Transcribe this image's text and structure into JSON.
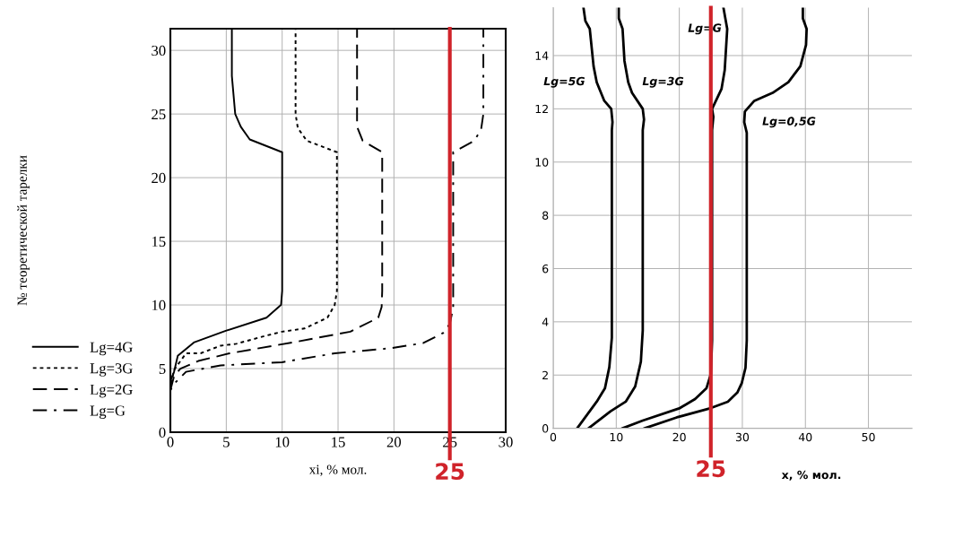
{
  "chart_data": [
    {
      "type": "line",
      "xlabel": "xi, % мол.",
      "ylabel": "№ теоретической тарелки",
      "xlim": [
        0,
        30
      ],
      "ylim": [
        0,
        31.7
      ],
      "xticks": [
        0,
        5,
        10,
        15,
        20,
        25,
        30
      ],
      "yticks": [
        0,
        5,
        10,
        15,
        20,
        25,
        30
      ],
      "grid": true,
      "legend": "left",
      "marker": "none",
      "ref_lines": [
        {
          "axis": "x",
          "value": 25,
          "label": "25",
          "color": "#d0232a"
        }
      ],
      "series": [
        {
          "name": "Lg=4G",
          "color": "#000000",
          "line_style": "solid",
          "x": [
            0,
            0,
            0.33,
            0.66,
            2.1,
            4.9,
            8.6,
            9.9,
            10.0,
            10,
            7.1,
            6.3,
            5.8,
            5.5,
            5.5
          ],
          "values": [
            0,
            4.0,
            4.75,
            6.0,
            7.05,
            7.95,
            9.0,
            10.0,
            11.1,
            22,
            23.0,
            24.0,
            25.0,
            28.0,
            31.7
          ]
        },
        {
          "name": "Lg=3G",
          "color": "#000000",
          "line_style": "dotted",
          "x": [
            0,
            0,
            0.33,
            1.4,
            2.7,
            4.5,
            5.9,
            8.4,
            10,
            12,
            14.05,
            14.7,
            14.9,
            14.9,
            12.2,
            11.4,
            11.2,
            11.2
          ],
          "values": [
            0,
            3.5,
            4.9,
            6.2,
            6.2,
            6.8,
            6.95,
            7.55,
            7.9,
            8.15,
            9.0,
            10.0,
            11.1,
            22,
            22.9,
            23.9,
            25.0,
            31.7
          ]
        },
        {
          "name": "Lg=2G",
          "color": "#000000",
          "line_style": "dashed",
          "x": [
            0,
            0,
            0.33,
            0.9,
            2.5,
            5.3,
            10.9,
            16.1,
            18.6,
            18.9,
            18.95,
            18.95,
            17.2,
            16.7,
            16.7,
            16.7
          ],
          "values": [
            0,
            3.3,
            4.4,
            5.0,
            5.6,
            6.2,
            7.05,
            7.9,
            9.0,
            9.85,
            11.1,
            22,
            22.9,
            24.0,
            25.0,
            31.7
          ]
        },
        {
          "name": "Lg=G",
          "color": "#000000",
          "line_style": "dashdot",
          "x": [
            0,
            0,
            0.33,
            1.4,
            4.5,
            10.0,
            14.7,
            19.7,
            22.6,
            24.4,
            25.0,
            25.3,
            25.3,
            27.2,
            27.8,
            28.0,
            28.0
          ],
          "values": [
            0,
            3.3,
            3.8,
            4.75,
            5.25,
            5.5,
            6.2,
            6.6,
            7.0,
            7.8,
            8.5,
            9.8,
            22,
            22.9,
            23.8,
            25,
            31.7
          ]
        }
      ]
    },
    {
      "type": "line",
      "xlabel": "x, % мол.",
      "xlim": [
        0,
        56.9
      ],
      "ylim": [
        0,
        15.8
      ],
      "xticks": [
        0,
        10,
        20,
        30,
        40,
        50
      ],
      "yticks": [
        0,
        2,
        4,
        6,
        8,
        10,
        12,
        14
      ],
      "grid": true,
      "marker": "none",
      "ref_lines": [
        {
          "axis": "x",
          "value": 25,
          "label": "25",
          "color": "#d0232a"
        }
      ],
      "series": [
        {
          "name": "Lg=5G",
          "color": "#000000",
          "line_style": "solid",
          "x": [
            3.8,
            6.9,
            8.2,
            8.9,
            9.3,
            9.3,
            9.4,
            9.2,
            8.1,
            6.9,
            6.4,
            5.8,
            5.1,
            4.8
          ],
          "values": [
            0,
            1.0,
            1.5,
            2.3,
            3.4,
            11.2,
            11.5,
            12.0,
            12.3,
            13.0,
            13.6,
            15.0,
            15.3,
            15.8
          ]
        },
        {
          "name": "Lg=3G",
          "color": "#000000",
          "line_style": "solid",
          "x": [
            5.6,
            9.1,
            11.5,
            13.0,
            13.9,
            14.2,
            14.2,
            14.4,
            14.2,
            12.5,
            11.9,
            11.3,
            11.0,
            10.4,
            10.4
          ],
          "values": [
            0,
            0.64,
            1.0,
            1.57,
            2.5,
            3.67,
            11.2,
            11.6,
            12.0,
            12.6,
            13.0,
            13.8,
            15.0,
            15.4,
            15.8
          ]
        },
        {
          "name": "Lg=G",
          "color": "#000000",
          "line_style": "solid",
          "x": [
            11.0,
            14.2,
            20.1,
            22.5,
            24.3,
            25.0,
            25.2,
            25.2,
            25.4,
            25.2,
            26.7,
            27.2,
            27.6,
            27.0
          ],
          "values": [
            0,
            0.29,
            0.76,
            1.1,
            1.5,
            2.04,
            3.3,
            11.2,
            11.7,
            12.0,
            12.75,
            13.45,
            15.0,
            15.8
          ]
        },
        {
          "name": "Lg=0,5G",
          "color": "#000000",
          "line_style": "solid",
          "x": [
            14.5,
            19.6,
            25.0,
            27.7,
            29.2,
            29.9,
            30.5,
            30.7,
            30.7,
            30.3,
            30.4,
            31.9,
            34.8,
            37.3,
            39.2,
            40.1,
            40.2,
            39.6,
            39.6
          ],
          "values": [
            0,
            0.41,
            0.76,
            1.0,
            1.34,
            1.69,
            2.27,
            3.3,
            11.1,
            11.5,
            11.9,
            12.3,
            12.6,
            13.0,
            13.6,
            14.4,
            15.0,
            15.4,
            15.8
          ]
        }
      ]
    }
  ]
}
